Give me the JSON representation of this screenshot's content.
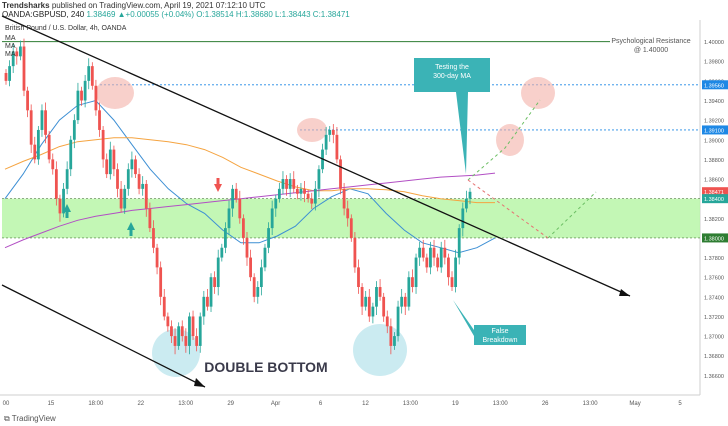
{
  "publisher": {
    "name": "Trendsharks",
    "text": "published on TradingView.com, April 19, 2021 07:12:10 UTC"
  },
  "header": {
    "symbol": "OANDA:GBPUSD, 240",
    "ohlc": "1.38469 ▲+0.00055 (+0.04%) O:1.38514 H:1.38680 L:1.38443 C:1.38471",
    "title": "British Pound / U.S. Dollar, 4h, OANDA",
    "ma_labels": [
      "MA",
      "MA",
      "MA"
    ]
  },
  "annotations": {
    "psych": [
      "Psychological Resistance",
      "@ 1.40000"
    ],
    "testing": [
      "Testing the",
      "300-day MA"
    ],
    "false_breakdown": [
      "False",
      "Breakdown"
    ],
    "double_bottom": "DOUBLE BOTTOM"
  },
  "footer": {
    "logo": "TradingView",
    "logo_icon": "tradingview-logo-icon"
  },
  "colors": {
    "up": "#26a69a",
    "down": "#ef5350",
    "zone": "#b9f6a8",
    "ma_blue": "#3d8fd4",
    "ma_orange": "#f5a441",
    "ma_purple": "#b24fc4",
    "callout": "#3bb3b6",
    "highlight_red": "#f4b0a8",
    "highlight_blue": "#a8dde8"
  },
  "chart_data": {
    "type": "candlestick",
    "title": "British Pound / U.S. Dollar, 4h, OANDA",
    "ylim": [
      1.364,
      1.4022
    ],
    "x_ticks": [
      "00",
      "15",
      "18:00",
      "22",
      "13:00",
      "29",
      "Apr",
      "6",
      "12",
      "13:00",
      "19",
      "13:00",
      "26",
      "13:00",
      "May",
      "5"
    ],
    "y_ticks": [
      "1.40000",
      "1.39800",
      "1.39600",
      "1.39400",
      "1.39200",
      "1.39000",
      "1.38800",
      "1.38600",
      "1.38400",
      "1.38200",
      "1.38000",
      "1.37800",
      "1.37600",
      "1.37400",
      "1.37200",
      "1.37000",
      "1.36800",
      "1.36600"
    ],
    "price_labels": [
      {
        "value": 1.3956,
        "text": "1.39560",
        "color": "#1e88e5"
      },
      {
        "value": 1.391,
        "text": "1.39100",
        "color": "#1e88e5"
      },
      {
        "value": 1.38471,
        "text": "1.38471",
        "color": "#ef5350"
      },
      {
        "value": 1.384,
        "text": "1.38400",
        "color": "#26a69a"
      },
      {
        "value": 1.38,
        "text": "1.38000",
        "color": "#2e7d32"
      }
    ],
    "levels": {
      "psychological_resistance": 1.4,
      "dotted_upper": 1.3956,
      "dotted_mid": 1.391,
      "zone_top": 1.384,
      "zone_bottom": 1.38
    },
    "series": [
      {
        "name": "MA",
        "values": [
          1.384,
          1.3865,
          1.3895,
          1.392,
          1.3935,
          1.394,
          1.392,
          1.3895,
          1.387,
          1.385,
          1.3835,
          1.3825,
          1.3808,
          1.3795,
          1.3795,
          1.3802,
          1.3812,
          1.383,
          1.3842,
          1.385,
          1.3845,
          1.3825,
          1.3808,
          1.3795,
          1.379,
          1.3785,
          1.379,
          1.38
        ]
      },
      {
        "name": "MA",
        "values": [
          1.387,
          1.3878,
          1.3885,
          1.3893,
          1.3898,
          1.39,
          1.3902,
          1.3902,
          1.39,
          1.3898,
          1.3895,
          1.389,
          1.3882,
          1.3872,
          1.3865,
          1.3858,
          1.3852,
          1.3848,
          1.3848,
          1.385,
          1.385,
          1.3849,
          1.3847,
          1.3843,
          1.384,
          1.3838,
          1.3836,
          1.3836
        ]
      },
      {
        "name": "MA",
        "values": [
          1.379,
          1.3798,
          1.3805,
          1.3812,
          1.3818,
          1.3822,
          1.3825,
          1.3828,
          1.383,
          1.3832,
          1.3834,
          1.3836,
          1.3838,
          1.384,
          1.3842,
          1.3844,
          1.3846,
          1.3848,
          1.385,
          1.3852,
          1.3854,
          1.3856,
          1.3858,
          1.386,
          1.3862,
          1.3863,
          1.3864,
          1.3866
        ]
      }
    ],
    "candles": [
      1.396,
      1.3975,
      1.399,
      1.3985,
      1.3995,
      1.395,
      1.393,
      1.3895,
      1.388,
      1.391,
      1.393,
      1.3905,
      1.388,
      1.387,
      1.384,
      1.3825,
      1.385,
      1.387,
      1.39,
      1.392,
      1.395,
      1.394,
      1.396,
      1.3975,
      1.3955,
      1.393,
      1.391,
      1.388,
      1.3865,
      1.389,
      1.387,
      1.385,
      1.383,
      1.385,
      1.387,
      1.388,
      1.3865,
      1.385,
      1.3855,
      1.383,
      1.381,
      1.379,
      1.377,
      1.374,
      1.372,
      1.371,
      1.37,
      1.369,
      1.371,
      1.37,
      1.369,
      1.372,
      1.37,
      1.369,
      1.372,
      1.374,
      1.373,
      1.376,
      1.375,
      1.378,
      1.379,
      1.381,
      1.383,
      1.385,
      1.384,
      1.382,
      1.38,
      1.378,
      1.376,
      1.374,
      1.375,
      1.377,
      1.379,
      1.381,
      1.383,
      1.384,
      1.385,
      1.386,
      1.385,
      1.386,
      1.385,
      1.3845,
      1.385,
      1.3845,
      1.384,
      1.3835,
      1.385,
      1.387,
      1.389,
      1.3905,
      1.391,
      1.3905,
      1.388,
      1.385,
      1.383,
      1.382,
      1.38,
      1.377,
      1.375,
      1.373,
      1.374,
      1.372,
      1.373,
      1.375,
      1.374,
      1.372,
      1.371,
      1.369,
      1.37,
      1.373,
      1.374,
      1.373,
      1.376,
      1.375,
      1.378,
      1.379,
      1.378,
      1.377,
      1.379,
      1.378,
      1.377,
      1.379,
      1.378,
      1.376,
      1.375,
      1.378,
      1.381,
      1.383,
      1.384,
      1.3847
    ]
  }
}
